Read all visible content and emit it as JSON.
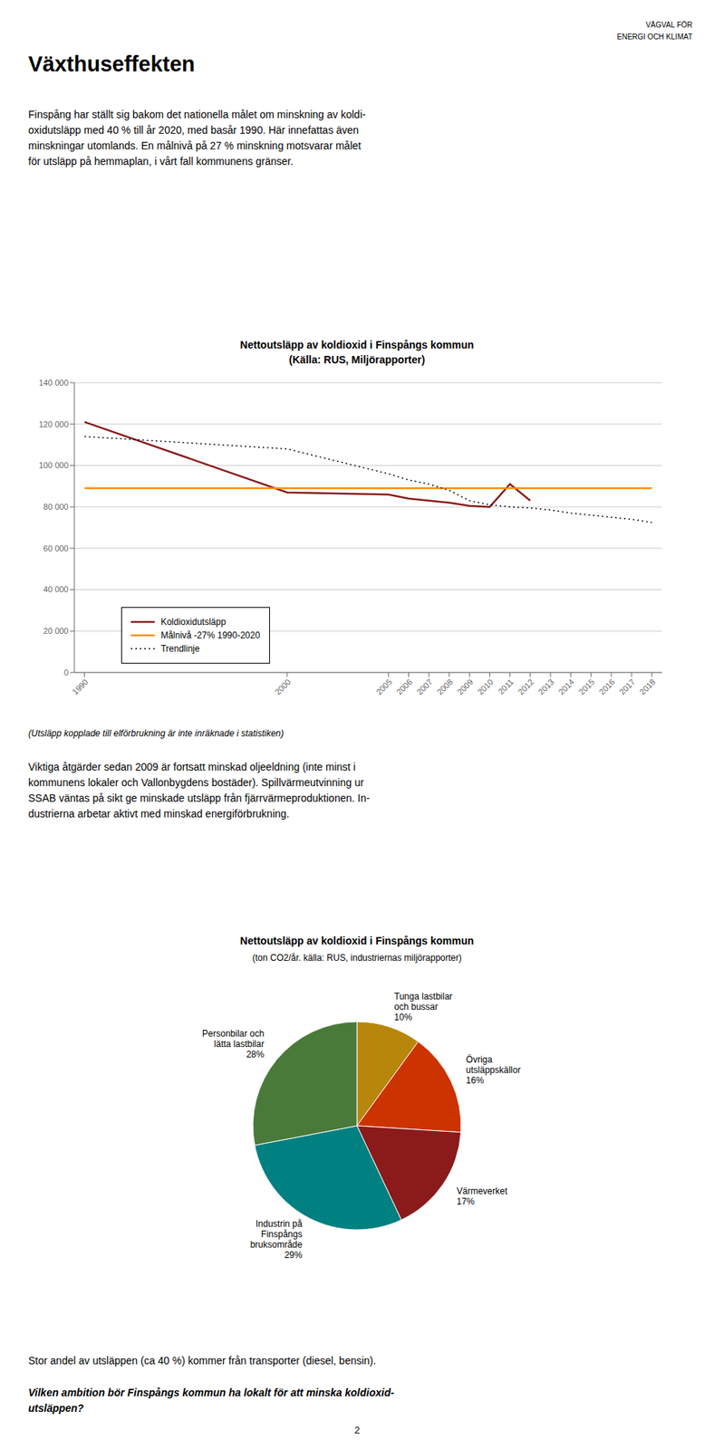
{
  "chart_data": [
    {
      "type": "line",
      "title": "Nettoutsläpp av koldioxid i Finspångs kommun\n(Källa: RUS, Miljörapporter)",
      "annotations": [
        "VÄGVAL FÖR",
        "ENERGI OCH KLIMAT",
        "Växthuseffekten",
        "Finspång har ställt sig bakom det nationella målet om minskning av koldi-\noxidutsläpp med 40 % till år 2020, med basår 1990. Här innefattas även\nminskningar utomlands. En målnivå på 27 % minskning motsvarar målet\nför utsläpp på hemmaplan, i vårt fall kommunens gränser.",
        "(Utsläpp kopplade till elförbrukning är inte inräknade i statistiken)",
        "Viktiga åtgärder sedan 2009 är fortsatt minskad oljeeldning (inte minst i\nkommunens lokaler och Vallonbygdens bostäder). Spillvärmeutvinning ur\nSSAB väntas på sikt ge minskade utsläpp från fjärrvärmeproduktionen. In-\ndustrierna arbetar aktivt med minskad energiförbrukning."
      ],
      "x": [
        1990,
        2000,
        2005,
        2006,
        2007,
        2008,
        2009,
        2010,
        2011,
        2012,
        2013,
        2014,
        2015,
        2016,
        2017,
        2018
      ],
      "series": [
        {
          "name": "Koldioxidutsläpp",
          "color": "#8B1A1A",
          "line_style": "solid",
          "values": [
            121000,
            87000,
            86000,
            84000,
            83000,
            82000,
            80500,
            80000,
            91000,
            83000,
            null,
            null,
            null,
            null,
            null,
            null
          ]
        },
        {
          "name": "Målnivå -27% 1990-2020",
          "color": "#FF8C00",
          "line_style": "solid",
          "values": [
            89000,
            89000,
            89000,
            89000,
            89000,
            89000,
            89000,
            89000,
            89000,
            89000,
            89000,
            89000,
            89000,
            89000,
            89000,
            89000
          ]
        },
        {
          "name": "Trendlinje",
          "color": "#000000",
          "line_style": "dotted",
          "values": [
            114000,
            108000,
            96000,
            93000,
            91000,
            88000,
            83000,
            81000,
            80000,
            79500,
            78500,
            77000,
            76000,
            75000,
            74000,
            72500
          ]
        }
      ],
      "xlim": [
        1989.5,
        2018.5
      ],
      "xticks": [
        1990,
        2000,
        2005,
        2006,
        2007,
        2008,
        2009,
        2010,
        2011,
        2012,
        2013,
        2014,
        2015,
        2016,
        2017,
        2018
      ],
      "ylim": [
        0,
        140000
      ],
      "yticks": [
        0,
        {
          "value": 20000,
          "label": "20 000"
        },
        {
          "value": 40000,
          "label": "40 000"
        },
        {
          "value": 60000,
          "label": "60 000"
        },
        {
          "value": 80000,
          "label": "80 000"
        },
        {
          "value": 100000,
          "label": "100 000"
        },
        {
          "value": 120000,
          "label": "120 000"
        },
        {
          "value": 140000,
          "label": "140 000"
        }
      ],
      "grid": true,
      "legend": "lower left"
    },
    {
      "type": "pie",
      "title": "Nettoutsläpp av koldioxid i Finspångs kommun",
      "subtitle": "(ton CO2/år. källa: RUS, industriernas miljörapporter)",
      "annotations": [
        "Stor andel av utsläppen (ca 40 %) kommer från transporter (diesel, bensin).",
        "Vilken ambition bör Finspångs kommun ha lokalt för att minska koldioxid-\nutsläppen?",
        "2"
      ],
      "categories": [
        "Tunga lastbilar\noch bussar",
        "Övriga\nutsläppskällor",
        "Värmeverket",
        "Industrin på\nFinspångs\nbruksområde",
        "Personbilar och\nlätta lastbilar"
      ],
      "values": [
        10,
        16,
        17,
        29,
        28
      ],
      "value_labels": [
        "10%",
        "16%",
        "17%",
        "29%",
        "28%"
      ],
      "data_labels": true,
      "colors": [
        "#B8860B",
        "#CC3300",
        "#8B1A1A",
        "#008080",
        "#4A7A3A"
      ]
    }
  ]
}
